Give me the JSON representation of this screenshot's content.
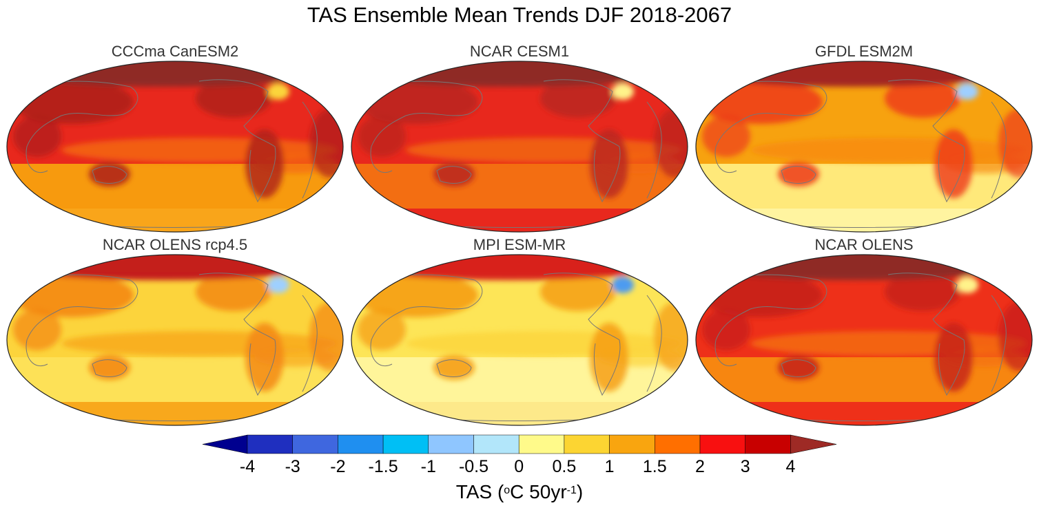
{
  "figure": {
    "title": "TAS Ensemble Mean Trends DJF 2018-2067"
  },
  "panels": [
    {
      "id": "p1",
      "title": "CCCma CanESM2",
      "base": "#e8281d",
      "ocean_band": "#f56a0a",
      "south": "#f79a0e",
      "land": "#ad1f1a",
      "arctic": "#8f2a25",
      "cold_spot": "#fbd53a",
      "antarctic_band": "#f9a51a"
    },
    {
      "id": "p2",
      "title": "NCAR CESM1",
      "base": "#e8281d",
      "ocean_band": "#f36a0e",
      "south": "#f36e12",
      "land": "#b82420",
      "arctic": "#8f2a25",
      "cold_spot": "#fff38a",
      "antarctic_band": "#e8281d"
    },
    {
      "id": "p3",
      "title": "GFDL ESM2M",
      "base": "#f7a20f",
      "ocean_band": "#f78b0f",
      "south": "#ffe97a",
      "land": "#ed3a17",
      "arctic": "#a32620",
      "cold_spot": "#9fcfff",
      "antarctic_band": "#fff4a0"
    },
    {
      "id": "p4",
      "title": "NCAR OLENS rcp4.5",
      "base": "#fcd43c",
      "ocean_band": "#f8a81c",
      "south": "#fde157",
      "land": "#f38411",
      "arctic": "#c41f1b",
      "cold_spot": "#9fd0ff",
      "antarctic_band": "#f8a81c"
    },
    {
      "id": "p5",
      "title": "MPI ESM-MR",
      "base": "#fde557",
      "ocean_band": "#fcd43c",
      "south": "#fff59a",
      "land": "#f59a12",
      "arctic": "#d8211b",
      "cold_spot": "#4d9bf0",
      "antarctic_band": "#fde98a"
    },
    {
      "id": "p6",
      "title": "NCAR OLENS",
      "base": "#ee3019",
      "ocean_band": "#f56f0d",
      "south": "#f78610",
      "land": "#c41f1b",
      "arctic": "#8f2a25",
      "cold_spot": "#fff38a",
      "antarctic_band": "#ee3019"
    }
  ],
  "colorbar": {
    "title_main": "TAS (",
    "title_deg": "o",
    "title_unit": "C 50yr",
    "title_exp": "-1",
    "title_close": ")",
    "labels": [
      "-4",
      "-3",
      "-2",
      "-1.5",
      "-1",
      "-0.5",
      "0",
      "0.5",
      "1",
      "1.5",
      "2",
      "3",
      "4"
    ],
    "low_extend_color": "#00008f",
    "high_extend_color": "#9e2a25",
    "colors": [
      "#1f2fbf",
      "#3f67df",
      "#1f8ff0",
      "#00bff5",
      "#8fc6ff",
      "#b2e6fa",
      "#fffa8a",
      "#fcd532",
      "#f9a50f",
      "#ff6f00",
      "#f81010",
      "#c80000"
    ]
  }
}
